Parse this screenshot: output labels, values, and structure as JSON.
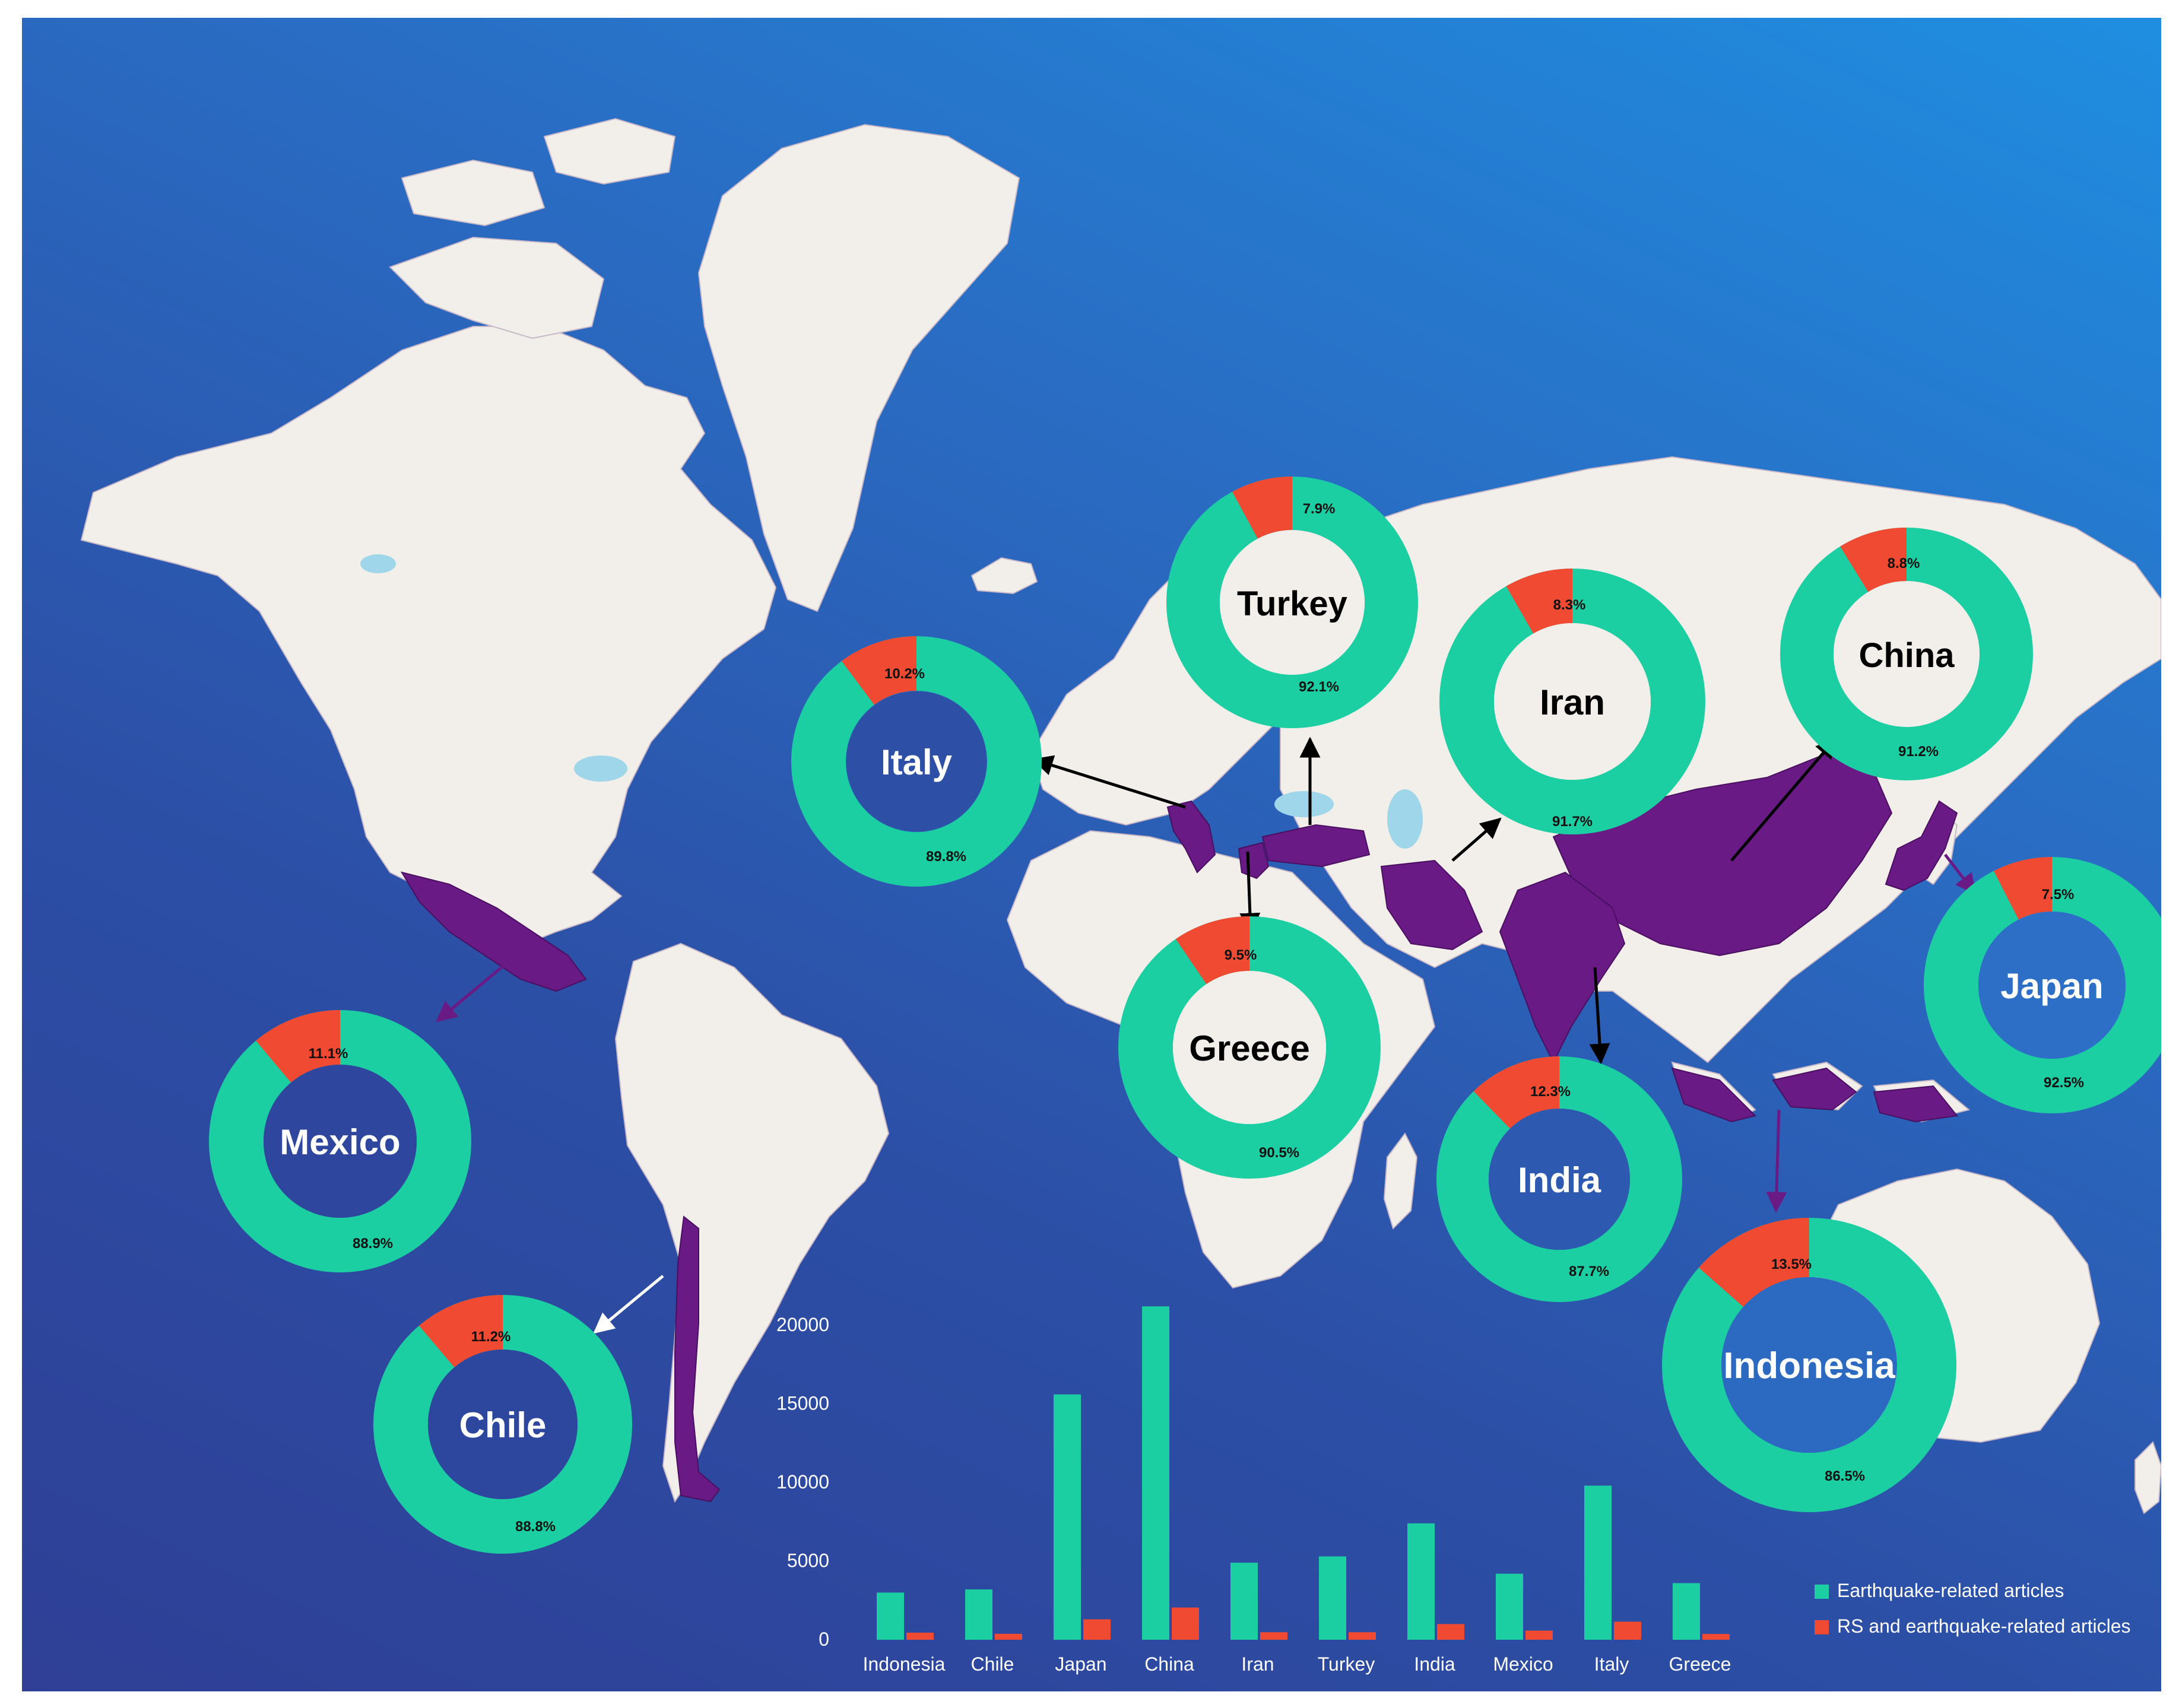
{
  "colors": {
    "earthquake": "#1ccfa2",
    "rs": "#f04a33",
    "highlight": "#6a1a84",
    "land": "#f2efea",
    "lake": "#9fd6ea"
  },
  "donuts": [
    {
      "country": "Turkey",
      "main": "92.1%",
      "rs": "7.9%",
      "label_color": "dark"
    },
    {
      "country": "Iran",
      "main": "91.7%",
      "rs": "8.3%",
      "label_color": "dark"
    },
    {
      "country": "China",
      "main": "91.2%",
      "rs": "8.8%",
      "label_color": "dark"
    },
    {
      "country": "Italy",
      "main": "89.8%",
      "rs": "10.2%",
      "label_color": "light"
    },
    {
      "country": "Greece",
      "main": "90.5%",
      "rs": "9.5%",
      "label_color": "dark"
    },
    {
      "country": "Japan",
      "main": "92.5%",
      "rs": "7.5%",
      "label_color": "light"
    },
    {
      "country": "Mexico",
      "main": "88.9%",
      "rs": "11.1%",
      "label_color": "light"
    },
    {
      "country": "India",
      "main": "87.7%",
      "rs": "12.3%",
      "label_color": "light"
    },
    {
      "country": "Chile",
      "main": "88.8%",
      "rs": "11.2%",
      "label_color": "light"
    },
    {
      "country": "Indonesia",
      "main": "86.5%",
      "rs": "13.5%",
      "label_color": "light"
    }
  ],
  "chart_data": {
    "type": "bar",
    "categories": [
      "Indonesia",
      "Chile",
      "Japan",
      "China",
      "Iran",
      "Turkey",
      "India",
      "Mexico",
      "Italy",
      "Greece"
    ],
    "series": [
      {
        "name": "Earthquake-related articles",
        "values": [
          3000,
          3200,
          15600,
          21200,
          4900,
          5300,
          7400,
          4200,
          9800,
          3600
        ]
      },
      {
        "name": "RS and earthquake-related articles",
        "values": [
          450,
          380,
          1300,
          2050,
          480,
          480,
          1000,
          580,
          1150,
          370
        ]
      }
    ],
    "yticks": [
      0,
      5000,
      10000,
      15000,
      20000
    ],
    "ylim": [
      0,
      22000
    ],
    "legend_position": "bottom-right"
  }
}
